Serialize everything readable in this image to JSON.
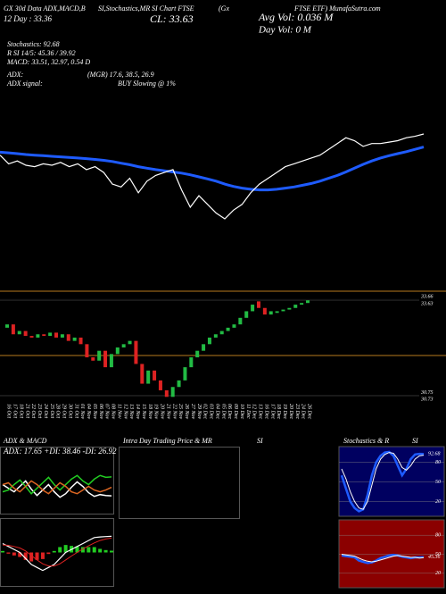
{
  "header": {
    "title": [
      "GX 30d Data ADX,MACD,B",
      "SI,Stochastics,MR",
      "SI Chart FTSE",
      "(Gx",
      "FTSE ETF) MunafaSutra.com"
    ],
    "sma": "12 Day : 33.36",
    "close": "CL: 33.63",
    "avg_vol": "Avg Vol: 0.036  M",
    "day_vol": "Day Vol: 0   M",
    "stats": [
      "Stochastics: 92.68",
      "R   SI 14/5: 45.36 / 39.92",
      "MACD: 33.51, 32.97, 0.54  D"
    ],
    "adx": [
      "ADX:",
      "(MGR) 17.6, 38.5, 26.9"
    ],
    "adx_signal": [
      "ADX  signal:",
      "BUY Slowing @ 1%"
    ]
  },
  "price_chart": {
    "type": "candlestick",
    "up_color": "#22bb44",
    "down_color": "#dd2222",
    "line_color": "#ffffff",
    "ma_color": "#1e5bff",
    "dates": [
      "16 Oct",
      "17 Oct",
      "18 Oct",
      "21 Oct",
      "22 Oct",
      "23 Oct",
      "24 Oct",
      "25 Oct",
      "28 Oct",
      "29 Oct",
      "30 Oct",
      "31 Oct",
      "01 Nov",
      "04 Nov",
      "05 Nov",
      "06 Nov",
      "07 Nov",
      "08 Nov",
      "11 Nov",
      "12 Nov",
      "13 Nov",
      "14 Nov",
      "15 Nov",
      "18 Nov",
      "19 Nov",
      "20 Nov",
      "21 Nov",
      "22 Nov",
      "25 Nov",
      "26 Nov",
      "27 Nov",
      "29 Nov",
      "02 Dec",
      "03 Dec",
      "04 Dec",
      "05 Dec",
      "06 Dec",
      "09 Dec",
      "10 Dec",
      "11 Dec",
      "12 Dec",
      "13 Dec",
      "16 Dec",
      "17 Dec",
      "18 Dec",
      "19 Dec",
      "20 Dec",
      "23 Dec",
      "24 Dec",
      "26 Dec"
    ],
    "open": [
      32.8,
      32.9,
      32.6,
      32.7,
      32.55,
      32.5,
      32.6,
      32.55,
      32.65,
      32.5,
      32.6,
      32.4,
      32.5,
      32.3,
      31.9,
      31.8,
      32.1,
      31.6,
      32.0,
      32.2,
      32.3,
      32.4,
      31.7,
      31.1,
      31.5,
      31.2,
      30.9,
      30.7,
      31.0,
      31.2,
      31.6,
      31.9,
      32.1,
      32.3,
      32.5,
      32.6,
      32.7,
      32.8,
      32.9,
      33.1,
      33.3,
      33.6,
      33.4,
      33.2,
      33.25,
      33.3,
      33.35,
      33.4,
      33.5,
      33.55
    ],
    "close": [
      32.9,
      32.6,
      32.7,
      32.55,
      32.5,
      32.6,
      32.55,
      32.65,
      32.5,
      32.6,
      32.4,
      32.5,
      32.3,
      31.9,
      31.8,
      32.1,
      31.6,
      32.0,
      32.2,
      32.3,
      32.4,
      31.7,
      31.1,
      31.5,
      31.2,
      30.9,
      30.7,
      31.0,
      31.2,
      31.6,
      31.9,
      32.1,
      32.3,
      32.5,
      32.6,
      32.7,
      32.8,
      32.9,
      33.1,
      33.3,
      33.5,
      33.4,
      33.2,
      33.3,
      33.3,
      33.35,
      33.4,
      33.5,
      33.55,
      33.63
    ],
    "ma": [
      33.0,
      32.98,
      32.95,
      32.92,
      32.9,
      32.88,
      32.86,
      32.84,
      32.82,
      32.8,
      32.78,
      32.75,
      32.72,
      32.68,
      32.62,
      32.57,
      32.5,
      32.45,
      32.4,
      32.36,
      32.32,
      32.28,
      32.22,
      32.15,
      32.08,
      32.0,
      31.9,
      31.82,
      31.76,
      31.72,
      31.7,
      31.7,
      31.72,
      31.76,
      31.8,
      31.86,
      31.92,
      32.0,
      32.1,
      32.2,
      32.32,
      32.45,
      32.58,
      32.7,
      32.8,
      32.88,
      32.95,
      33.02,
      33.1,
      33.18
    ],
    "ylim": [
      30.6,
      33.8
    ],
    "price_ticks": [
      33.66,
      33.63,
      30.75,
      30.73
    ]
  },
  "panels": {
    "adx_title": "ADX  & MACD",
    "adx_text": "ADX: 17.65 +DI: 38.46 -DI: 26.92",
    "mrsi_title": [
      "Intra  Day Trading Price  & MR",
      "SI"
    ],
    "stoch_title": [
      "Stochastics & R",
      "SI"
    ],
    "adx": {
      "ylim": [
        0,
        60
      ],
      "series": [
        {
          "name": "ADX",
          "color": "#ffffff",
          "values": [
            30,
            26,
            22,
            28,
            34,
            25,
            18,
            24,
            30,
            22,
            16,
            20,
            27,
            33,
            28,
            21,
            17,
            19,
            18,
            17.65
          ]
        },
        {
          "name": "+DI",
          "color": "#22cc22",
          "values": [
            22,
            24,
            30,
            35,
            28,
            20,
            26,
            32,
            38,
            30,
            24,
            30,
            36,
            40,
            34,
            30,
            36,
            40,
            38,
            38.46
          ]
        },
        {
          "name": "-DI",
          "color": "#dd6622",
          "values": [
            30,
            32,
            26,
            22,
            28,
            34,
            30,
            24,
            20,
            26,
            32,
            28,
            22,
            20,
            24,
            28,
            24,
            22,
            24,
            26.92
          ]
        }
      ]
    },
    "macd": {
      "ylim": [
        -1,
        1
      ],
      "macd": [
        0.3,
        0.2,
        0.1,
        0.0,
        -0.2,
        -0.4,
        -0.5,
        -0.6,
        -0.5,
        -0.4,
        -0.2,
        0.0,
        0.1,
        0.2,
        0.3,
        0.4,
        0.5,
        0.52,
        0.53,
        0.54
      ],
      "signal": [
        0.25,
        0.24,
        0.2,
        0.15,
        0.05,
        -0.1,
        -0.25,
        -0.38,
        -0.45,
        -0.45,
        -0.38,
        -0.25,
        -0.12,
        0.0,
        0.12,
        0.22,
        0.32,
        0.4,
        0.45,
        0.48
      ],
      "hist": [
        0.05,
        -0.04,
        -0.1,
        -0.15,
        -0.25,
        -0.3,
        -0.25,
        -0.22,
        -0.05,
        0.05,
        0.18,
        0.25,
        0.22,
        0.2,
        0.18,
        0.18,
        0.18,
        0.12,
        0.08,
        0.06
      ],
      "colors": [
        "#ffffff",
        "#dd2222",
        "#22cc22",
        "#dd2222"
      ]
    },
    "stoch": {
      "ylim": [
        0,
        100
      ],
      "ticks": [
        80,
        50,
        20
      ],
      "value_tick": 92.68,
      "k": [
        60,
        40,
        20,
        10,
        5,
        8,
        30,
        60,
        80,
        90,
        95,
        96,
        90,
        75,
        60,
        70,
        85,
        92,
        93,
        92.68
      ],
      "d": [
        70,
        55,
        35,
        20,
        10,
        8,
        20,
        45,
        70,
        85,
        92,
        95,
        94,
        85,
        72,
        68,
        75,
        85,
        90,
        91
      ],
      "colors": [
        "#1e5bff",
        "#ffffff"
      ]
    },
    "rsi": {
      "ylim": [
        0,
        100
      ],
      "ticks": [
        80,
        50,
        20
      ],
      "value_tick": 45.36,
      "rsi": [
        48,
        47,
        46,
        45,
        40,
        38,
        36,
        37,
        40,
        44,
        46,
        48,
        49,
        48,
        46,
        45,
        44,
        45,
        45,
        45.36
      ],
      "sig": [
        50,
        49,
        48,
        47,
        44,
        41,
        39,
        38,
        39,
        41,
        43,
        45,
        47,
        48,
        47,
        46,
        45,
        45,
        44,
        44.5
      ],
      "colors": [
        "#1e5bff",
        "#ffffff"
      ]
    }
  }
}
